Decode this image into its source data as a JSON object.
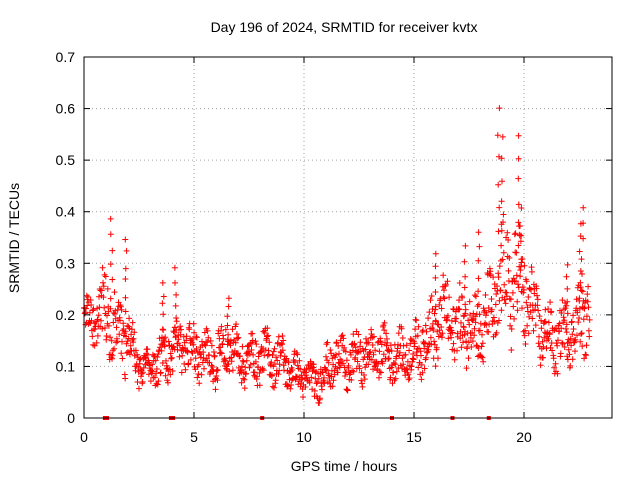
{
  "chart_data": {
    "type": "scatter",
    "title": "Day 196 of 2024, SRMTID for receiver kvtx",
    "xlabel": "GPS time / hours",
    "ylabel": "SRMTID / TECUs",
    "xlim": [
      0,
      24
    ],
    "ylim": [
      0,
      0.7
    ],
    "grid": true,
    "marker": "+",
    "series_color": "#ff0000",
    "x_ticks": [
      0,
      5,
      10,
      15,
      20
    ],
    "x_tick_labels": [
      "0",
      "5",
      "10",
      "15",
      "20"
    ],
    "y_ticks": [
      0,
      0.1,
      0.2,
      0.3,
      0.4,
      0.5,
      0.6,
      0.7
    ],
    "y_tick_labels": [
      "0",
      "0.1",
      "0.2",
      "0.3",
      "0.4",
      "0.5",
      "0.6",
      "0.7"
    ],
    "zero_markers_x": [
      0.95,
      1.05,
      3.95,
      4.05,
      8.1,
      14.0,
      16.75,
      18.4
    ],
    "series": [
      {
        "name": "SRMTID",
        "envelope_x": [
          0.0,
          0.5,
          1.0,
          1.5,
          2.0,
          2.5,
          3.0,
          3.5,
          4.0,
          4.5,
          5.0,
          5.5,
          6.0,
          6.5,
          7.0,
          7.5,
          8.0,
          8.5,
          9.0,
          9.5,
          10.0,
          10.5,
          11.0,
          11.5,
          12.0,
          12.5,
          13.0,
          13.5,
          14.0,
          14.5,
          15.0,
          15.5,
          16.0,
          16.5,
          17.0,
          17.5,
          18.0,
          18.5,
          19.0,
          19.5,
          20.0,
          20.5,
          21.0,
          21.5,
          22.0,
          22.5,
          23.0
        ],
        "envelope_mid": [
          0.2,
          0.19,
          0.21,
          0.17,
          0.15,
          0.1,
          0.1,
          0.11,
          0.13,
          0.14,
          0.13,
          0.12,
          0.11,
          0.15,
          0.12,
          0.11,
          0.12,
          0.12,
          0.11,
          0.09,
          0.08,
          0.07,
          0.09,
          0.12,
          0.1,
          0.12,
          0.12,
          0.13,
          0.12,
          0.12,
          0.13,
          0.15,
          0.18,
          0.2,
          0.17,
          0.19,
          0.17,
          0.2,
          0.26,
          0.27,
          0.25,
          0.19,
          0.16,
          0.15,
          0.17,
          0.18,
          0.22
        ],
        "envelope_spread": [
          0.03,
          0.04,
          0.07,
          0.06,
          0.05,
          0.03,
          0.03,
          0.04,
          0.05,
          0.04,
          0.04,
          0.04,
          0.04,
          0.05,
          0.04,
          0.04,
          0.04,
          0.04,
          0.04,
          0.03,
          0.03,
          0.03,
          0.04,
          0.04,
          0.04,
          0.04,
          0.04,
          0.04,
          0.04,
          0.04,
          0.04,
          0.05,
          0.06,
          0.06,
          0.06,
          0.06,
          0.06,
          0.07,
          0.09,
          0.1,
          0.09,
          0.06,
          0.05,
          0.05,
          0.05,
          0.06,
          0.06
        ],
        "peaks": [
          {
            "x": 1.25,
            "y": 0.39
          },
          {
            "x": 1.9,
            "y": 0.35
          },
          {
            "x": 3.6,
            "y": 0.26
          },
          {
            "x": 4.15,
            "y": 0.29
          },
          {
            "x": 6.55,
            "y": 0.23
          },
          {
            "x": 16.0,
            "y": 0.32
          },
          {
            "x": 17.3,
            "y": 0.33
          },
          {
            "x": 17.95,
            "y": 0.36
          },
          {
            "x": 18.85,
            "y": 0.6
          },
          {
            "x": 19.0,
            "y": 0.55
          },
          {
            "x": 19.75,
            "y": 0.55
          },
          {
            "x": 19.85,
            "y": 0.41
          },
          {
            "x": 21.95,
            "y": 0.3
          },
          {
            "x": 22.65,
            "y": 0.41
          },
          {
            "x": 22.55,
            "y": 0.38
          }
        ]
      }
    ]
  }
}
